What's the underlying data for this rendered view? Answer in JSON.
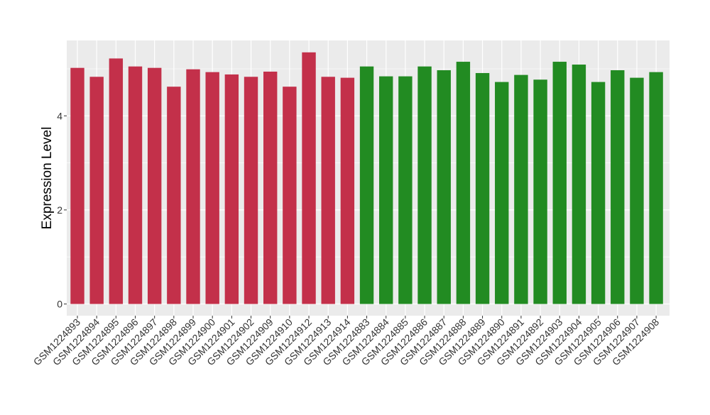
{
  "chart_data": {
    "type": "bar",
    "title": "",
    "xlabel": "",
    "ylabel": "Expression Level",
    "ylim": [
      0,
      5.6
    ],
    "yticks": [
      0,
      2,
      4
    ],
    "grid": true,
    "legend": "none",
    "colors": {
      "panel_background": "#ebebeb",
      "grid_major": "#ffffff",
      "axis_text": "#333333",
      "group_1": "#c3304a",
      "group_2": "#228b22"
    },
    "categories": [
      "GSM1224893",
      "GSM1224894",
      "GSM1224895",
      "GSM1224896",
      "GSM1224897",
      "GSM1224898",
      "GSM1224899",
      "GSM1224900",
      "GSM1224901",
      "GSM1224902",
      "GSM1224909",
      "GSM1224910",
      "GSM1224912",
      "GSM1224913",
      "GSM1224914",
      "GSM1224883",
      "GSM1224884",
      "GSM1224885",
      "GSM1224886",
      "GSM1224887",
      "GSM1224888",
      "GSM1224889",
      "GSM1224890",
      "GSM1224891",
      "GSM1224892",
      "GSM1224903",
      "GSM1224904",
      "GSM1224905",
      "GSM1224906",
      "GSM1224907",
      "GSM1224908"
    ],
    "values": [
      5.02,
      4.83,
      5.22,
      5.05,
      5.02,
      4.62,
      4.99,
      4.93,
      4.88,
      4.83,
      4.94,
      4.62,
      5.35,
      4.83,
      4.81,
      5.05,
      4.84,
      4.84,
      5.05,
      4.97,
      5.15,
      4.91,
      4.72,
      4.87,
      4.77,
      5.15,
      5.09,
      4.72,
      4.97,
      4.81,
      4.93
    ],
    "bar_groups": [
      1,
      1,
      1,
      1,
      1,
      1,
      1,
      1,
      1,
      1,
      1,
      1,
      1,
      1,
      1,
      2,
      2,
      2,
      2,
      2,
      2,
      2,
      2,
      2,
      2,
      2,
      2,
      2,
      2,
      2,
      2
    ]
  }
}
